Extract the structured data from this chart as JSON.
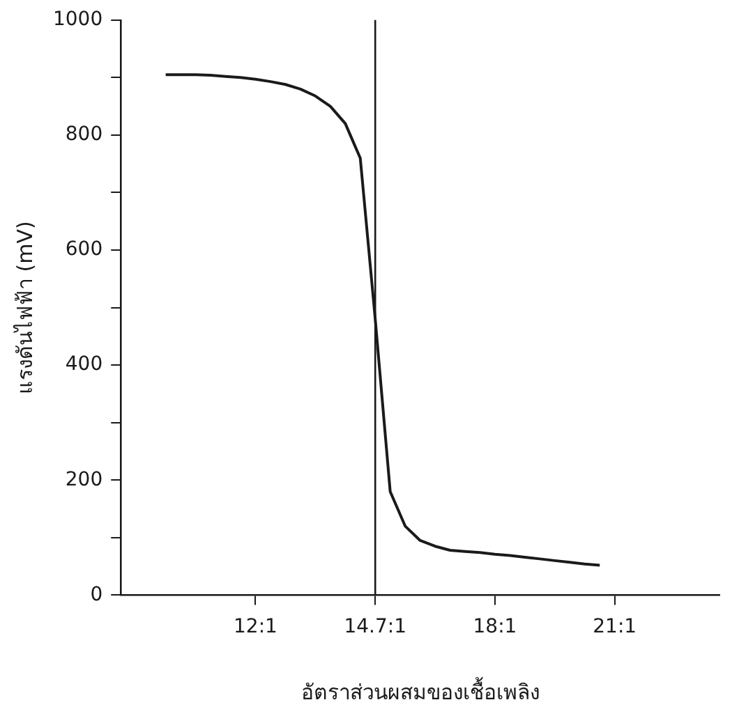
{
  "chart_data": {
    "type": "line",
    "xlabel": "อัตราส่วนผสมของเชื้อเพลิง",
    "ylabel": "แรงดันไฟฟ้า (mV)",
    "categories": [
      null,
      null,
      null,
      null,
      null,
      null,
      null,
      null,
      null,
      "12:1",
      null,
      null,
      null,
      null,
      null,
      null,
      null,
      "14.7:1",
      null,
      null,
      null,
      null,
      null,
      null,
      null,
      "18:1",
      null,
      null,
      null,
      null,
      null,
      null,
      null,
      "21:1",
      null,
      null,
      null,
      null,
      null,
      null,
      null
    ],
    "series": [
      {
        "color": "#1a1a1a",
        "values": [
          null,
          null,
          null,
          905,
          905,
          905,
          904,
          902,
          900,
          897,
          893,
          888,
          880,
          868,
          850,
          820,
          760,
          480,
          180,
          120,
          95,
          85,
          78,
          76,
          74,
          71,
          69,
          66,
          63,
          60,
          57,
          54,
          52,
          null,
          null,
          null,
          null,
          null,
          null,
          null,
          null
        ]
      }
    ],
    "ylim": [
      0,
      1000
    ],
    "yticks": [
      0,
      {
        "value": 100,
        "label": null
      },
      200,
      {
        "value": 300,
        "label": null
      },
      400,
      {
        "value": 500,
        "label": null
      },
      600,
      {
        "value": 700,
        "label": null
      },
      800,
      {
        "value": 900,
        "label": null
      },
      1000
    ],
    "ref_lines": [
      {
        "axis": "x",
        "value": "14.7:1",
        "color": "#1a1a1a"
      }
    ],
    "marker": "none"
  }
}
